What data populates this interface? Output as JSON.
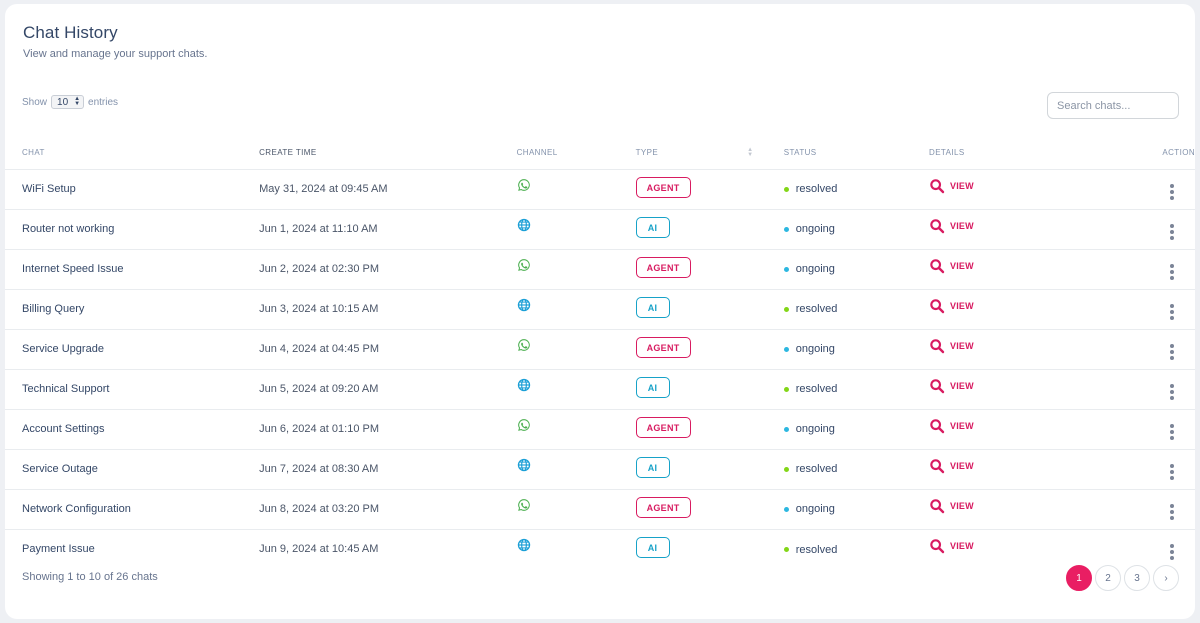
{
  "header": {
    "title": "Chat History",
    "subtitle": "View and manage your support chats."
  },
  "controls": {
    "show_label": "Show",
    "entries_value": "10",
    "entries_label": "entries",
    "search_placeholder": "Search chats..."
  },
  "table": {
    "columns": [
      "CHAT",
      "CREATE TIME",
      "CHANNEL",
      "TYPE",
      "STATUS",
      "DETAILS",
      "ACTION"
    ],
    "view_label": "VIEW",
    "rows": [
      {
        "chat": "WiFi Setup",
        "time": "May 31, 2024 at 09:45 AM",
        "channel": "whatsapp-icon",
        "type": "AGENT",
        "status": "resolved"
      },
      {
        "chat": "Router not working",
        "time": "Jun 1, 2024 at 11:10 AM",
        "channel": "globe-icon",
        "type": "AI",
        "status": "ongoing"
      },
      {
        "chat": "Internet Speed Issue",
        "time": "Jun 2, 2024 at 02:30 PM",
        "channel": "whatsapp-icon",
        "type": "AGENT",
        "status": "ongoing"
      },
      {
        "chat": "Billing Query",
        "time": "Jun 3, 2024 at 10:15 AM",
        "channel": "globe-icon",
        "type": "AI",
        "status": "resolved"
      },
      {
        "chat": "Service Upgrade",
        "time": "Jun 4, 2024 at 04:45 PM",
        "channel": "whatsapp-icon",
        "type": "AGENT",
        "status": "ongoing"
      },
      {
        "chat": "Technical Support",
        "time": "Jun 5, 2024 at 09:20 AM",
        "channel": "globe-icon",
        "type": "AI",
        "status": "resolved"
      },
      {
        "chat": "Account Settings",
        "time": "Jun 6, 2024 at 01:10 PM",
        "channel": "whatsapp-icon",
        "type": "AGENT",
        "status": "ongoing"
      },
      {
        "chat": "Service Outage",
        "time": "Jun 7, 2024 at 08:30 AM",
        "channel": "globe-icon",
        "type": "AI",
        "status": "resolved"
      },
      {
        "chat": "Network Configuration",
        "time": "Jun 8, 2024 at 03:20 PM",
        "channel": "whatsapp-icon",
        "type": "AGENT",
        "status": "ongoing"
      },
      {
        "chat": "Payment Issue",
        "time": "Jun 9, 2024 at 10:45 AM",
        "channel": "globe-icon",
        "type": "AI",
        "status": "resolved"
      }
    ]
  },
  "footer": {
    "info": "Showing 1 to 10 of 26 chats",
    "pages": [
      "1",
      "2",
      "3",
      "›"
    ],
    "active_page": "1"
  },
  "colors": {
    "agent": "#d81b60",
    "ai": "#17a2c8",
    "resolved": "#82d616",
    "ongoing": "#2cb7e0",
    "whatsapp": "#4caf50",
    "globe": "#1a9fd6",
    "active_page": "#e91e63"
  }
}
